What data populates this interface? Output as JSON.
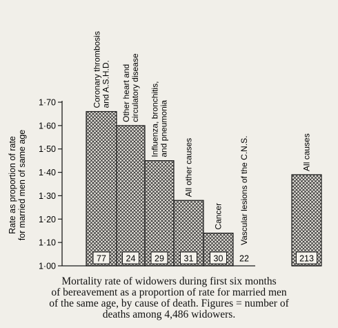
{
  "chart_data": {
    "type": "bar",
    "ylabel": "Rate as proportion of rate\nfor married men of same age",
    "ylim": [
      1.0,
      1.7
    ],
    "yticks": [
      1.0,
      1.1,
      1.2,
      1.3,
      1.4,
      1.5,
      1.6,
      1.7
    ],
    "ytick_labels": [
      "1·00",
      "1·10",
      "1·20",
      "1·30",
      "1·40",
      "1·50",
      "1·60",
      "1·70"
    ],
    "categories": [
      "Coronary thrombosis\nand A.S.H.D.",
      "Other heart and\ncirculatory disease",
      "Influenza, bronchitis,\nand pneumonia",
      "All other causes",
      "Cancer",
      "Vascular lesions of the C.N.S.",
      "All causes"
    ],
    "values": [
      1.66,
      1.6,
      1.45,
      1.28,
      1.14,
      1.0,
      1.39
    ],
    "deaths": [
      "77",
      "24",
      "29",
      "31",
      "30",
      "22",
      "213"
    ],
    "grid": false,
    "bar_fill": "cross-hatched",
    "colors": {
      "bar_line": "#1b1b1b",
      "background": "#f1efe9"
    }
  },
  "caption": "Mortality rate of widowers during first six months\nof bereavement as a proportion of rate for married men\nof the same age, by cause of death.  Figures = number of\ndeaths among 4,486 widowers."
}
